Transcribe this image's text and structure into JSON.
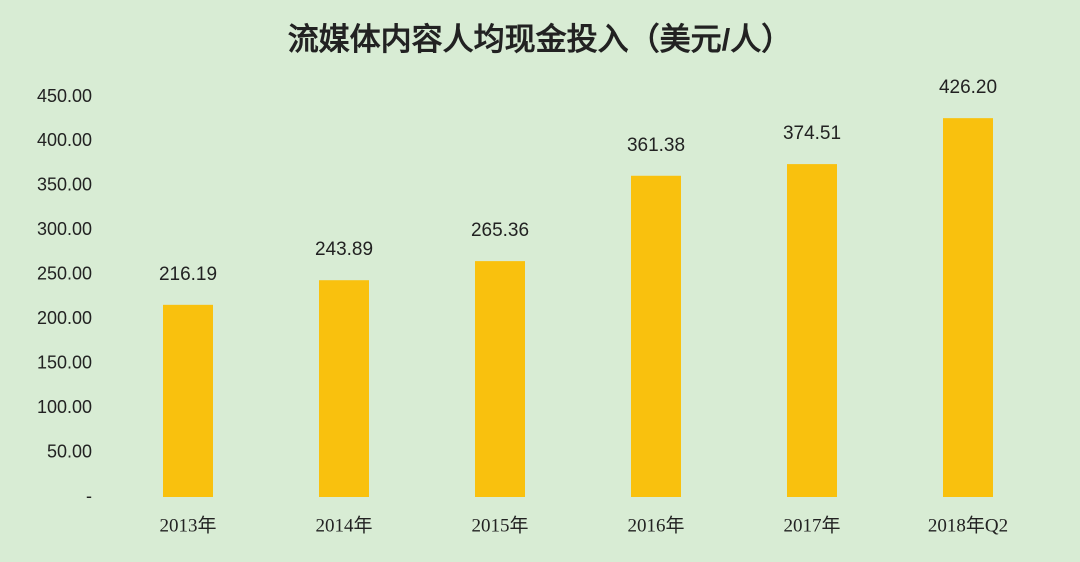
{
  "chart_data": {
    "type": "bar",
    "title": "流媒体内容人均现金投入（美元/人）",
    "categories": [
      "2013年",
      "2014年",
      "2015年",
      "2016年",
      "2017年",
      "2018年Q2"
    ],
    "values": [
      216.19,
      243.89,
      265.36,
      361.38,
      374.51,
      426.2
    ],
    "value_labels": [
      "216.19",
      "243.89",
      "265.36",
      "361.38",
      "374.51",
      "426.20"
    ],
    "color": "#f9c10e",
    "ylim": [
      0,
      450
    ],
    "yticks": [
      {
        "value": 0,
        "label": "-"
      },
      {
        "value": 50,
        "label": "50.00"
      },
      {
        "value": 100,
        "label": "100.00"
      },
      {
        "value": 150,
        "label": "150.00"
      },
      {
        "value": 200,
        "label": "200.00"
      },
      {
        "value": 250,
        "label": "250.00"
      },
      {
        "value": 300,
        "label": "300.00"
      },
      {
        "value": 350,
        "label": "350.00"
      },
      {
        "value": 400,
        "label": "400.00"
      },
      {
        "value": 450,
        "label": "450.00"
      }
    ],
    "grid": false
  }
}
